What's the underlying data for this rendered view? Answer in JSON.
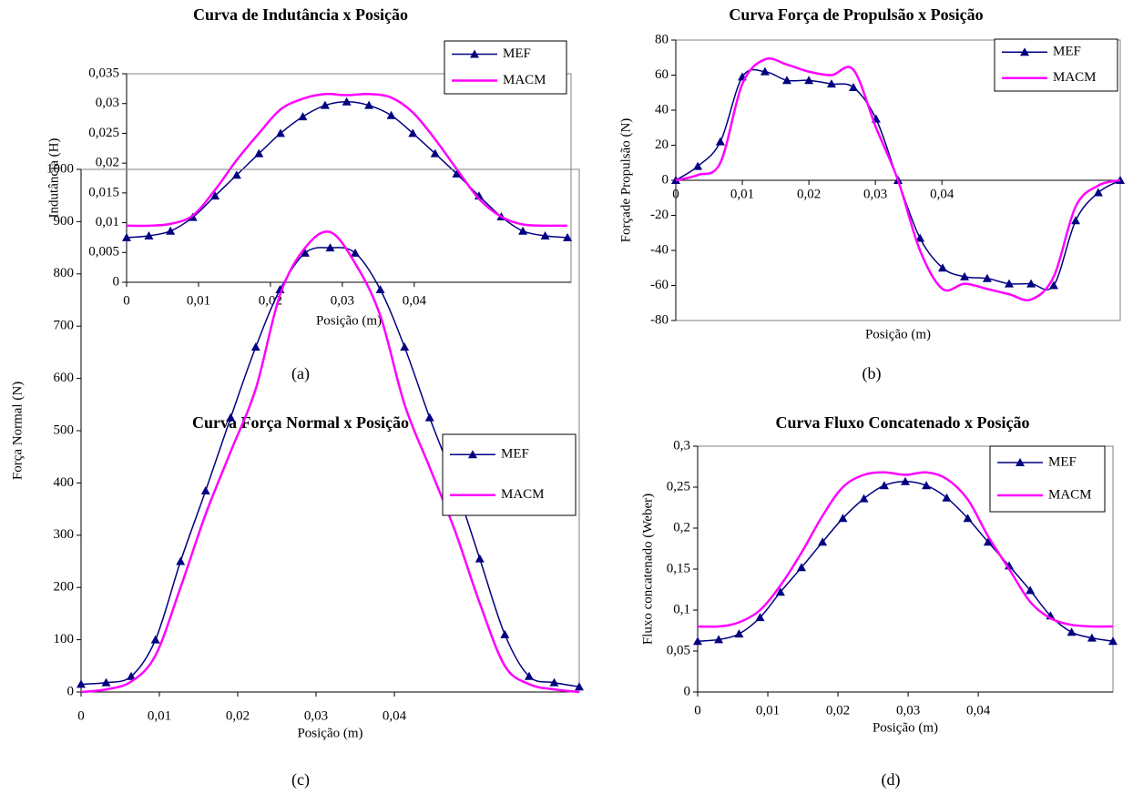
{
  "chart_data": [
    {
      "type": "line",
      "title": "Curva de Indutância x Posição",
      "xlabel": "Posição (m)",
      "ylabel": "Indutância (H)",
      "caption": "(a)",
      "x": [
        0,
        0.0031,
        0.0061,
        0.0092,
        0.0123,
        0.0153,
        0.0184,
        0.0214,
        0.0245,
        0.0276,
        0.0306,
        0.0337,
        0.0368,
        0.0398,
        0.0429,
        0.0459,
        0.049,
        0.0521,
        0.0551,
        0.0582,
        0.0613
      ],
      "xlim": [
        0,
        0.0618
      ],
      "xticks": [
        0,
        {
          "value": 0.01,
          "label": "0,01"
        },
        {
          "value": 0.02,
          "label": "0,02"
        },
        {
          "value": 0.03,
          "label": "0,03"
        },
        {
          "value": 0.04,
          "label": "0,04"
        }
      ],
      "ylim": [
        0,
        0.035
      ],
      "yticks": [
        0,
        {
          "value": 0.005,
          "label": "0,005"
        },
        {
          "value": 0.01,
          "label": "0,01"
        },
        {
          "value": 0.015,
          "label": "0,015"
        },
        {
          "value": 0.02,
          "label": "0,02"
        },
        {
          "value": 0.025,
          "label": "0,025"
        },
        {
          "value": 0.03,
          "label": "0,03"
        },
        {
          "value": 0.035,
          "label": "0,035"
        }
      ],
      "legend": "upper right",
      "series": [
        {
          "name": "MEF",
          "color": "#000080",
          "marker": "triangle",
          "values": [
            0.0075,
            0.0078,
            0.0086,
            0.0109,
            0.0145,
            0.018,
            0.0216,
            0.025,
            0.0278,
            0.0297,
            0.0303,
            0.0297,
            0.028,
            0.025,
            0.0216,
            0.0182,
            0.0145,
            0.011,
            0.0086,
            0.0078,
            0.0075
          ]
        },
        {
          "name": "MACM",
          "color": "#ff00ff",
          "values": [
            0.0095,
            0.0095,
            0.0098,
            0.0112,
            0.0155,
            0.0205,
            0.025,
            0.029,
            0.0308,
            0.0316,
            0.0314,
            0.0316,
            0.031,
            0.0285,
            0.024,
            0.019,
            0.014,
            0.011,
            0.0097,
            0.0095,
            0.0095
          ]
        }
      ]
    },
    {
      "type": "line",
      "title": "Curva Força de Propulsão x Posição",
      "xlabel": "Posição (m)",
      "ylabel": "Forçade Propulsão (N)",
      "caption": "(b)",
      "x": [
        0,
        0.0033,
        0.0067,
        0.01,
        0.0134,
        0.0167,
        0.02,
        0.0234,
        0.0267,
        0.0301,
        0.0334,
        0.0367,
        0.0401,
        0.0434,
        0.0468,
        0.0501,
        0.0534,
        0.0568,
        0.0601,
        0.0635,
        0.0668
      ],
      "xlim": [
        0,
        0.0668
      ],
      "xticks": [
        0,
        {
          "value": 0.01,
          "label": "0,01"
        },
        {
          "value": 0.02,
          "label": "0,02"
        },
        {
          "value": 0.03,
          "label": "0,03"
        },
        {
          "value": 0.04,
          "label": "0,04"
        }
      ],
      "ylim": [
        -80,
        80
      ],
      "yticks": [
        -80,
        -60,
        -40,
        -20,
        0,
        20,
        40,
        60,
        80
      ],
      "legend": "upper right",
      "series": [
        {
          "name": "MEF",
          "color": "#000080",
          "marker": "triangle",
          "values": [
            0,
            8,
            22,
            59,
            62,
            57,
            57,
            55,
            53,
            35,
            0,
            -33,
            -50,
            -55,
            -56,
            -59,
            -59,
            -60,
            -23,
            -7,
            0
          ]
        },
        {
          "name": "MACM",
          "color": "#ff00ff",
          "values": [
            0,
            3,
            10,
            55,
            69,
            66,
            62,
            60,
            63,
            30,
            0,
            -40,
            -62,
            -59,
            -62,
            -65,
            -68,
            -55,
            -15,
            -3,
            0
          ]
        }
      ]
    },
    {
      "type": "line",
      "title": "Curva Força Normal x Posição",
      "xlabel": "Posição (m)",
      "ylabel": "Força Normal (N)",
      "caption": "(c)",
      "x": [
        0,
        0.0032,
        0.0064,
        0.0095,
        0.0127,
        0.0159,
        0.0191,
        0.0223,
        0.0254,
        0.0286,
        0.0318,
        0.035,
        0.0382,
        0.0413,
        0.0445,
        0.0477,
        0.0509,
        0.0541,
        0.0572,
        0.0604,
        0.0636
      ],
      "xlim": [
        0,
        0.0636
      ],
      "xticks": [
        0,
        {
          "value": 0.01,
          "label": "0,01"
        },
        {
          "value": 0.02,
          "label": "0,02"
        },
        {
          "value": 0.03,
          "label": "0,03"
        },
        {
          "value": 0.04,
          "label": "0,04"
        }
      ],
      "ylim": [
        0,
        1000
      ],
      "yticks": [
        0,
        100,
        200,
        300,
        400,
        500,
        600,
        700,
        800,
        900,
        1000
      ],
      "legend": "upper right",
      "series": [
        {
          "name": "MEF",
          "color": "#000080",
          "marker": "triangle",
          "values": [
            15,
            18,
            30,
            100,
            250,
            385,
            525,
            660,
            770,
            840,
            850,
            840,
            770,
            660,
            525,
            400,
            255,
            110,
            30,
            18,
            10
          ]
        },
        {
          "name": "MACM",
          "color": "#ff00ff",
          "values": [
            0,
            5,
            20,
            70,
            200,
            340,
            460,
            580,
            760,
            850,
            880,
            820,
            720,
            550,
            430,
            310,
            170,
            50,
            15,
            5,
            0
          ]
        }
      ]
    },
    {
      "type": "line",
      "title": "Curva Fluxo Concatenado x Posição",
      "xlabel": "Posição (m)",
      "ylabel": "Fluxo concatenado (Weber)",
      "caption": "(d)",
      "x": [
        0,
        0.003,
        0.0059,
        0.0089,
        0.0118,
        0.0148,
        0.0178,
        0.0207,
        0.0237,
        0.0266,
        0.0296,
        0.0326,
        0.0355,
        0.0385,
        0.0414,
        0.0444,
        0.0474,
        0.0503,
        0.0533,
        0.0562,
        0.0592
      ],
      "xlim": [
        0,
        0.0592
      ],
      "xticks": [
        0,
        {
          "value": 0.01,
          "label": "0,01"
        },
        {
          "value": 0.02,
          "label": "0,02"
        },
        {
          "value": 0.03,
          "label": "0,03"
        },
        {
          "value": 0.04,
          "label": "0,04"
        }
      ],
      "ylim": [
        0,
        0.3
      ],
      "yticks": [
        0,
        {
          "value": 0.05,
          "label": "0,05"
        },
        {
          "value": 0.1,
          "label": "0,1"
        },
        {
          "value": 0.15,
          "label": "0,15"
        },
        {
          "value": 0.2,
          "label": "0,2"
        },
        {
          "value": 0.25,
          "label": "0,25"
        },
        {
          "value": 0.3,
          "label": "0,3"
        }
      ],
      "legend": "upper right",
      "series": [
        {
          "name": "MEF",
          "color": "#000080",
          "marker": "triangle",
          "values": [
            0.062,
            0.064,
            0.071,
            0.091,
            0.122,
            0.152,
            0.183,
            0.212,
            0.236,
            0.252,
            0.257,
            0.252,
            0.237,
            0.212,
            0.183,
            0.154,
            0.124,
            0.093,
            0.073,
            0.066,
            0.062
          ]
        },
        {
          "name": "MACM",
          "color": "#ff00ff",
          "values": [
            0.08,
            0.08,
            0.085,
            0.1,
            0.13,
            0.17,
            0.215,
            0.25,
            0.265,
            0.268,
            0.265,
            0.268,
            0.26,
            0.235,
            0.19,
            0.15,
            0.11,
            0.09,
            0.082,
            0.08,
            0.08
          ]
        }
      ]
    }
  ]
}
